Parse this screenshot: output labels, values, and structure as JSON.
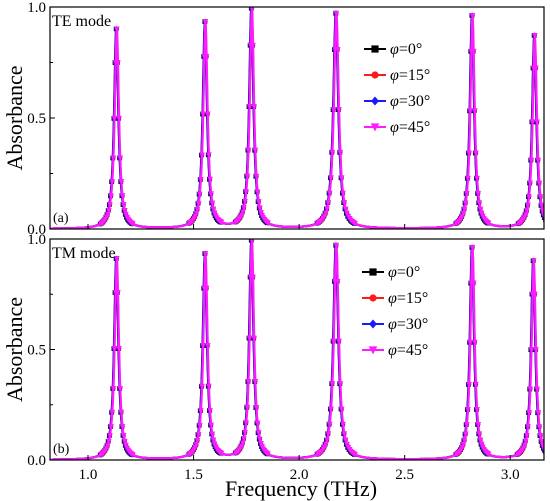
{
  "chart_data": [
    {
      "type": "line",
      "panel_label": "(a)",
      "mode_label": "TE mode",
      "ylabel": "Absorbance",
      "xlabel": "",
      "xlim": [
        0.82,
        3.16
      ],
      "ylim": [
        0.0,
        1.0
      ],
      "yticks": [
        {
          "value": 0.0,
          "label": "0.0"
        },
        {
          "value": 0.5,
          "label": "0.5"
        },
        {
          "value": 1.0,
          "label": "1.0"
        }
      ],
      "resonances": [
        {
          "f0": 1.135,
          "peak": 0.9,
          "hw": 0.012
        },
        {
          "f0": 1.555,
          "peak": 0.93,
          "hw": 0.012
        },
        {
          "f0": 1.775,
          "peak": 0.99,
          "hw": 0.012
        },
        {
          "f0": 2.175,
          "peak": 0.97,
          "hw": 0.014
        },
        {
          "f0": 2.82,
          "peak": 0.96,
          "hw": 0.012
        },
        {
          "f0": 3.115,
          "peak": 0.87,
          "hw": 0.012
        }
      ],
      "legend": "upper-right",
      "series": [
        {
          "name_prefix": "φ",
          "name_suffix": "=0°",
          "color": "#000000",
          "marker": "square"
        },
        {
          "name_prefix": "φ",
          "name_suffix": "=15°",
          "color": "#ff1a1a",
          "marker": "circle"
        },
        {
          "name_prefix": "φ",
          "name_suffix": "=30°",
          "color": "#1a1aff",
          "marker": "diamond"
        },
        {
          "name_prefix": "φ",
          "name_suffix": "=45°",
          "color": "#ff1aff",
          "marker": "triangle-down"
        }
      ]
    },
    {
      "type": "line",
      "panel_label": "(b)",
      "mode_label": "TM mode",
      "ylabel": "Absorbance",
      "xlabel": "Frequency (THz)",
      "xlim": [
        0.82,
        3.16
      ],
      "ylim": [
        0.0,
        1.0
      ],
      "xticks": [
        {
          "value": 1.0,
          "label": "1.0"
        },
        {
          "value": 1.5,
          "label": "1.5"
        },
        {
          "value": 2.0,
          "label": "2.0"
        },
        {
          "value": 2.5,
          "label": "2.5"
        },
        {
          "value": 3.0,
          "label": "3.0"
        }
      ],
      "yticks": [
        {
          "value": 0.0,
          "label": "0.0"
        },
        {
          "value": 0.5,
          "label": "0.5"
        },
        {
          "value": 1.0,
          "label": "1.0"
        }
      ],
      "resonances": [
        {
          "f0": 1.135,
          "peak": 0.91,
          "hw": 0.012
        },
        {
          "f0": 1.555,
          "peak": 0.93,
          "hw": 0.012
        },
        {
          "f0": 1.775,
          "peak": 0.99,
          "hw": 0.012
        },
        {
          "f0": 2.175,
          "peak": 0.97,
          "hw": 0.014
        },
        {
          "f0": 2.82,
          "peak": 0.96,
          "hw": 0.012
        },
        {
          "f0": 3.11,
          "peak": 0.9,
          "hw": 0.012
        }
      ],
      "legend": "upper-right",
      "series": [
        {
          "name_prefix": "φ",
          "name_suffix": "=0°",
          "color": "#000000",
          "marker": "square"
        },
        {
          "name_prefix": "φ",
          "name_suffix": "=15°",
          "color": "#ff1a1a",
          "marker": "circle"
        },
        {
          "name_prefix": "φ",
          "name_suffix": "=30°",
          "color": "#1a1aff",
          "marker": "diamond"
        },
        {
          "name_prefix": "φ",
          "name_suffix": "=45°",
          "color": "#ff1aff",
          "marker": "triangle-down"
        }
      ]
    }
  ]
}
